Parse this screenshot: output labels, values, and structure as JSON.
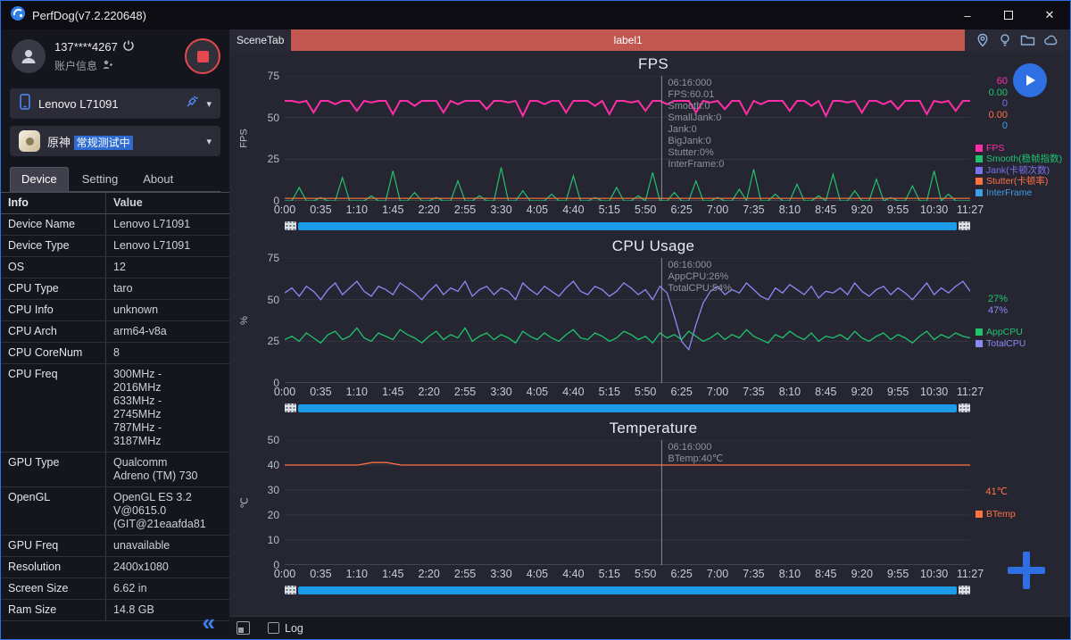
{
  "window": {
    "title": "PerfDog(v7.2.220648)",
    "controls": {
      "minimize": "–",
      "close": "✕"
    }
  },
  "sidebar": {
    "account": {
      "id": "137****4267",
      "info_label": "账户信息"
    },
    "device_select": {
      "value": "Lenovo L71091",
      "caret": "▾"
    },
    "app_select": {
      "name": "原神",
      "status": "常规测试中",
      "caret": "▾"
    },
    "tabs": [
      {
        "label": "Device",
        "active": true
      },
      {
        "label": "Setting",
        "active": false
      },
      {
        "label": "About",
        "active": false
      }
    ],
    "table": {
      "headers": [
        "Info",
        "Value"
      ],
      "rows": [
        {
          "info": "Device Name",
          "value": "Lenovo L71091"
        },
        {
          "info": "Device Type",
          "value": "Lenovo L71091"
        },
        {
          "info": "OS",
          "value": "12"
        },
        {
          "info": "CPU Type",
          "value": "taro"
        },
        {
          "info": "CPU Info",
          "value": "unknown"
        },
        {
          "info": "CPU Arch",
          "value": "arm64-v8a"
        },
        {
          "info": "CPU CoreNum",
          "value": "8"
        },
        {
          "info": "CPU Freq",
          "value": "300MHz -\n2016MHz\n633MHz -\n2745MHz\n787MHz -\n3187MHz"
        },
        {
          "info": "GPU Type",
          "value": "Qualcomm\nAdreno (TM) 730"
        },
        {
          "info": "OpenGL",
          "value": "OpenGL ES 3.2\nV@0615.0\n(GIT@21eaafda81"
        },
        {
          "info": "GPU Freq",
          "value": "unavailable"
        },
        {
          "info": "Resolution",
          "value": "2400x1080"
        },
        {
          "info": "Screen Size",
          "value": "6.62 in"
        },
        {
          "info": "Ram Size",
          "value": "14.8 GB"
        }
      ]
    },
    "collapse_glyph": "«"
  },
  "scene": {
    "tab_label": "SceneTab",
    "label": "label1"
  },
  "bottom_bar": {
    "log_label": "Log"
  },
  "chart_data": [
    {
      "id": "fps",
      "type": "line",
      "title": "FPS",
      "unit_label": "FPS",
      "ylim": [
        0,
        75
      ],
      "yticks": [
        75,
        50,
        25,
        0
      ],
      "x_labels": [
        "0:00",
        "0:35",
        "1:10",
        "1:45",
        "2:20",
        "2:55",
        "3:30",
        "4:05",
        "4:40",
        "5:15",
        "5:50",
        "6:25",
        "7:00",
        "7:35",
        "8:10",
        "8:45",
        "9:20",
        "9:55",
        "10:30",
        "11:27"
      ],
      "cursor": {
        "x_frac": 0.55,
        "tooltip": [
          "06:16:000",
          "FPS:60.01",
          "Smooth:0",
          "SmallJank:0",
          "Jank:0",
          "BigJank:0",
          "Stutter:0%",
          "InterFrame:0"
        ]
      },
      "current_values": [
        {
          "text": "60",
          "color": "#ff2da6"
        },
        {
          "text": "0.00",
          "color": "#1fc36c"
        },
        {
          "text": "0",
          "color": "#7b72f0"
        },
        {
          "text": "0.00",
          "color": "#ff7043"
        },
        {
          "text": "0",
          "color": "#3f9ee8"
        }
      ],
      "legend_offset": 0,
      "legend": [
        {
          "label": "FPS",
          "color": "#ff2da6"
        },
        {
          "label": "Smooth(稳帧指数)",
          "color": "#1fc36c"
        },
        {
          "label": "Jank(卡顿次数)",
          "color": "#7b72f0"
        },
        {
          "label": "Stutter(卡顿率)",
          "color": "#ff7043"
        },
        {
          "label": "InterFrame",
          "color": "#3f9ee8"
        }
      ],
      "series": [
        {
          "name": "Smooth",
          "color": "#1fc36c",
          "width": 1.2,
          "values": [
            0,
            0,
            8,
            0,
            0,
            2,
            0,
            0,
            14,
            0,
            0,
            0,
            3,
            0,
            0,
            18,
            0,
            0,
            5,
            0,
            0,
            2,
            0,
            0,
            12,
            0,
            0,
            3,
            0,
            0,
            20,
            0,
            0,
            6,
            0,
            0,
            0,
            4,
            0,
            0,
            15,
            0,
            0,
            2,
            0,
            0,
            8,
            0,
            0,
            3,
            0,
            17,
            0,
            0,
            5,
            0,
            0,
            12,
            0,
            0,
            2,
            0,
            0,
            7,
            0,
            19,
            0,
            0,
            4,
            0,
            0,
            10,
            0,
            0,
            3,
            0,
            16,
            0,
            0,
            6,
            0,
            0,
            13,
            0,
            2,
            0,
            0,
            9,
            0,
            0,
            18,
            0,
            4,
            0,
            0,
            0
          ]
        },
        {
          "name": "Stutter",
          "color": "#ff7043",
          "width": 1.2,
          "values": [
            1.5,
            1.5
          ]
        },
        {
          "name": "FPS",
          "color": "#ff2da6",
          "width": 2,
          "values": [
            60,
            60,
            59,
            60,
            53,
            60,
            60,
            58,
            60,
            60,
            54,
            60,
            59,
            60,
            60,
            52,
            60,
            60,
            57,
            60,
            60,
            60,
            53,
            60,
            58,
            60,
            60,
            60,
            55,
            60,
            60,
            59,
            60,
            51,
            60,
            60,
            58,
            60,
            60,
            53,
            60,
            60,
            60,
            57,
            60,
            52,
            60,
            60,
            59,
            60,
            54,
            60,
            60,
            58,
            60,
            60,
            60,
            53,
            60,
            59,
            60,
            55,
            60,
            60,
            52,
            60,
            58,
            60,
            60,
            60,
            54,
            60,
            60,
            57,
            60,
            51,
            60,
            60,
            59,
            60,
            53,
            60,
            60,
            58,
            60,
            55,
            60,
            60,
            60,
            52,
            60,
            59,
            60,
            54,
            60,
            60
          ]
        }
      ]
    },
    {
      "id": "cpu",
      "type": "line",
      "title": "CPU Usage",
      "unit_label": "%",
      "ylim": [
        0,
        75
      ],
      "yticks": [
        75,
        50,
        25,
        0
      ],
      "x_labels": [
        "0:00",
        "0:35",
        "1:10",
        "1:45",
        "2:20",
        "2:55",
        "3:30",
        "4:05",
        "4:40",
        "5:15",
        "5:50",
        "6:25",
        "7:00",
        "7:35",
        "8:10",
        "8:45",
        "9:20",
        "9:55",
        "10:30",
        "11:27"
      ],
      "cursor": {
        "x_frac": 0.55,
        "tooltip": [
          "06:16:000",
          "AppCPU:26%",
          "TotalCPU:54%"
        ]
      },
      "current_values": [
        {
          "text": "27%",
          "color": "#1fc36c"
        },
        {
          "text": "47%",
          "color": "#8a8af5"
        }
      ],
      "legend_offset": 40,
      "legend": [
        {
          "label": "AppCPU",
          "color": "#1fc36c"
        },
        {
          "label": "TotalCPU",
          "color": "#8a8af5"
        }
      ],
      "series": [
        {
          "name": "TotalCPU",
          "color": "#8a8af5",
          "width": 1.3,
          "values": [
            54,
            57,
            52,
            58,
            55,
            50,
            56,
            60,
            53,
            57,
            61,
            55,
            52,
            58,
            56,
            53,
            60,
            57,
            54,
            50,
            55,
            59,
            53,
            57,
            55,
            61,
            52,
            56,
            58,
            53,
            57,
            55,
            50,
            60,
            56,
            53,
            58,
            55,
            52,
            57,
            61,
            55,
            53,
            58,
            56,
            52,
            55,
            60,
            57,
            53,
            56,
            50,
            58,
            54,
            40,
            25,
            20,
            35,
            48,
            55,
            58,
            53,
            56,
            54,
            60,
            56,
            52,
            50,
            57,
            54,
            59,
            56,
            53,
            58,
            51,
            55,
            54,
            57,
            53,
            60,
            55,
            52,
            56,
            58,
            53,
            57,
            54,
            50,
            55,
            60,
            53,
            57,
            54,
            58,
            61,
            55
          ]
        },
        {
          "name": "AppCPU",
          "color": "#1fc36c",
          "width": 1.3,
          "values": [
            26,
            28,
            25,
            30,
            27,
            24,
            29,
            31,
            26,
            28,
            33,
            27,
            25,
            30,
            28,
            26,
            32,
            29,
            27,
            24,
            28,
            31,
            26,
            29,
            27,
            33,
            25,
            28,
            30,
            26,
            29,
            27,
            24,
            31,
            28,
            26,
            30,
            27,
            25,
            29,
            32,
            27,
            26,
            30,
            28,
            25,
            27,
            31,
            29,
            26,
            28,
            24,
            30,
            27,
            29,
            26,
            31,
            28,
            25,
            27,
            30,
            26,
            29,
            27,
            32,
            28,
            26,
            24,
            29,
            27,
            31,
            28,
            26,
            30,
            25,
            28,
            27,
            29,
            26,
            31,
            27,
            25,
            28,
            30,
            26,
            29,
            27,
            24,
            28,
            31,
            26,
            29,
            27,
            30,
            28,
            27
          ]
        }
      ]
    },
    {
      "id": "temperature",
      "type": "line",
      "title": "Temperature",
      "unit_label": "℃",
      "ylim": [
        0,
        50
      ],
      "yticks": [
        50,
        40,
        30,
        20,
        10,
        0
      ],
      "x_labels": [
        "0:00",
        "0:35",
        "1:10",
        "1:45",
        "2:20",
        "2:55",
        "3:30",
        "4:05",
        "4:40",
        "5:15",
        "5:50",
        "6:25",
        "7:00",
        "7:35",
        "8:10",
        "8:45",
        "9:20",
        "9:55",
        "10:30",
        "11:27"
      ],
      "cursor": {
        "x_frac": 0.55,
        "tooltip": [
          "06:16:000",
          "BTemp:40℃"
        ]
      },
      "current_values": [
        {
          "text": "41℃",
          "color": "#ff7043"
        }
      ],
      "legend_offset": 52,
      "legend": [
        {
          "label": "BTemp",
          "color": "#ff7043"
        }
      ],
      "series": [
        {
          "name": "BTemp",
          "color": "#ff7043",
          "width": 1.3,
          "values": [
            40,
            40,
            40,
            40,
            40,
            40,
            41,
            41,
            40,
            40,
            40,
            40,
            40,
            40,
            40,
            40,
            40,
            40,
            40,
            40,
            40,
            40,
            40,
            40,
            40,
            40,
            40,
            40,
            40,
            40,
            40,
            40,
            40,
            40,
            40,
            40,
            40,
            40,
            40,
            40,
            40,
            40,
            40,
            40,
            40,
            40,
            40,
            40
          ]
        }
      ]
    }
  ]
}
